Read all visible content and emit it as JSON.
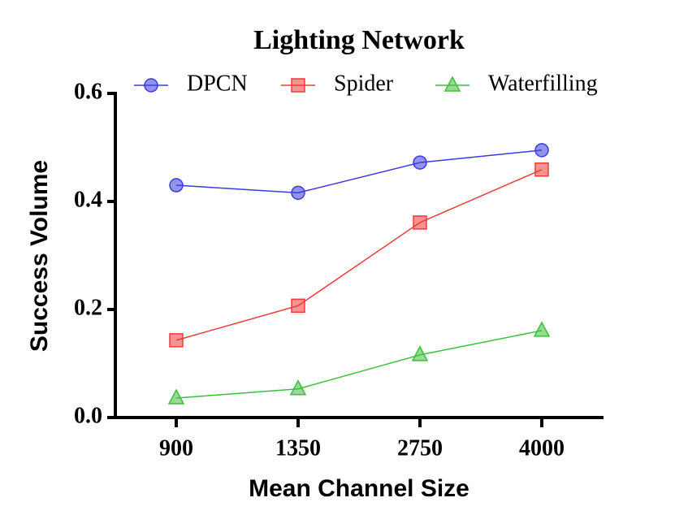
{
  "chart_data": {
    "type": "line",
    "title": "Lighting Network",
    "x_label": "Mean Channel Size",
    "y_label": "Success Volume",
    "categories": [
      "900",
      "1350",
      "2750",
      "4000"
    ],
    "series": [
      {
        "name": "DPCN",
        "color": "#3a3ae0",
        "marker": "circle",
        "values": [
          0.43,
          0.416,
          0.472,
          0.495
        ]
      },
      {
        "name": "Spider",
        "color": "#ee3b3b",
        "marker": "square",
        "values": [
          0.143,
          0.207,
          0.361,
          0.459
        ]
      },
      {
        "name": "Waterfilling",
        "color": "#3cbf3c",
        "marker": "triangle",
        "values": [
          0.036,
          0.053,
          0.116,
          0.161
        ]
      }
    ],
    "ylim": [
      0,
      0.6
    ],
    "yticks": [
      {
        "value": 0,
        "label": "0.0"
      },
      0.2,
      0.4,
      0.6
    ],
    "grid": false
  }
}
